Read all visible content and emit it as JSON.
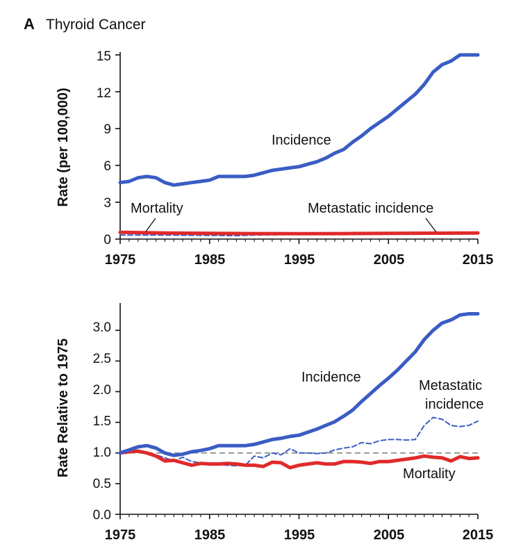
{
  "figure": {
    "panel_letter": "A",
    "panel_title": "Thyroid Cancer"
  },
  "colors": {
    "incidence": "#3a5cc4",
    "mortality": "#e02a2a",
    "metastatic": "#3a5cc4",
    "reference_line": "#8a8a8a",
    "axis": "#111111"
  },
  "chart_data": [
    {
      "type": "line",
      "title": "",
      "xlabel": "",
      "ylabel": "Rate (per 100,000)",
      "xlim": [
        1975,
        2015
      ],
      "ylim": [
        0,
        15
      ],
      "xticks": [
        1975,
        1985,
        1995,
        2005,
        2015
      ],
      "xtick_labels": [
        "1975",
        "1985",
        "1995",
        "2005",
        "2015"
      ],
      "yticks": [
        0,
        3,
        6,
        9,
        12,
        15
      ],
      "ytick_labels": [
        "0",
        "3",
        "6",
        "9",
        "12",
        "15"
      ],
      "grid": false,
      "annotations": [
        {
          "text": "Incidence",
          "target_series": "Incidence"
        },
        {
          "text": "Mortality",
          "target_series": "Mortality"
        },
        {
          "text": "Metastatic incidence",
          "target_series": "Metastatic incidence"
        }
      ],
      "series": [
        {
          "name": "Incidence",
          "style": "solid",
          "color": "#3a5cc4",
          "x": [
            1975,
            1976,
            1977,
            1978,
            1979,
            1980,
            1981,
            1982,
            1983,
            1984,
            1985,
            1986,
            1987,
            1988,
            1989,
            1990,
            1991,
            1992,
            1993,
            1994,
            1995,
            1996,
            1997,
            1998,
            1999,
            2000,
            2001,
            2002,
            2003,
            2004,
            2005,
            2006,
            2007,
            2008,
            2009,
            2010,
            2011,
            2012,
            2013,
            2014,
            2015
          ],
          "y": [
            4.6,
            4.7,
            5.0,
            5.1,
            5.0,
            4.6,
            4.4,
            4.5,
            4.6,
            4.7,
            4.8,
            5.1,
            5.1,
            5.1,
            5.1,
            5.2,
            5.4,
            5.6,
            5.7,
            5.8,
            5.9,
            6.1,
            6.3,
            6.6,
            7.0,
            7.3,
            7.9,
            8.4,
            9.0,
            9.5,
            10.0,
            10.6,
            11.2,
            11.8,
            12.6,
            13.6,
            14.2,
            14.5,
            15.0,
            15.0,
            15.0
          ]
        },
        {
          "name": "Mortality",
          "style": "solid",
          "color": "#e02a2a",
          "x": [
            1975,
            1980,
            1985,
            1990,
            1995,
            2000,
            2005,
            2010,
            2015
          ],
          "y": [
            0.55,
            0.5,
            0.47,
            0.45,
            0.44,
            0.45,
            0.47,
            0.48,
            0.5
          ]
        },
        {
          "name": "Metastatic incidence",
          "style": "dashed",
          "color": "#3a5cc4",
          "x": [
            1975,
            1980,
            1985,
            1988,
            1990,
            1995,
            2000,
            2005,
            2010,
            2015
          ],
          "y": [
            0.33,
            0.33,
            0.3,
            0.28,
            0.33,
            0.38,
            0.42,
            0.45,
            0.5,
            0.55
          ]
        }
      ]
    },
    {
      "type": "line",
      "title": "",
      "xlabel": "",
      "ylabel": "Rate Relative to 1975",
      "xlim": [
        1975,
        2015
      ],
      "ylim": [
        0,
        3.4
      ],
      "xticks": [
        1975,
        1985,
        1995,
        2005,
        2015
      ],
      "xtick_labels": [
        "1975",
        "1985",
        "1995",
        "2005",
        "2015"
      ],
      "yticks": [
        0,
        0.5,
        1.0,
        1.5,
        2.0,
        2.5,
        3.0
      ],
      "ytick_labels": [
        "0.0",
        "0.5",
        "1.0",
        "1.5",
        "2.0",
        "2.5",
        "3.0"
      ],
      "grid": false,
      "reference_line": {
        "y": 1.0,
        "style": "dashed"
      },
      "annotations": [
        {
          "text": "Incidence",
          "target_series": "Incidence"
        },
        {
          "text": "Metastatic",
          "target_series": "Metastatic incidence"
        },
        {
          "text": "incidence",
          "target_series": "Metastatic incidence"
        },
        {
          "text": "Mortality",
          "target_series": "Mortality"
        }
      ],
      "series": [
        {
          "name": "Incidence",
          "style": "solid",
          "color": "#3a5cc4",
          "x": [
            1975,
            1976,
            1977,
            1978,
            1979,
            1980,
            1981,
            1982,
            1983,
            1984,
            1985,
            1986,
            1987,
            1988,
            1989,
            1990,
            1991,
            1992,
            1993,
            1994,
            1995,
            1996,
            1997,
            1998,
            1999,
            2000,
            2001,
            2002,
            2003,
            2004,
            2005,
            2006,
            2007,
            2008,
            2009,
            2010,
            2011,
            2012,
            2013,
            2014,
            2015
          ],
          "y": [
            1.0,
            1.05,
            1.1,
            1.12,
            1.08,
            1.0,
            0.96,
            0.98,
            1.02,
            1.04,
            1.07,
            1.12,
            1.12,
            1.12,
            1.12,
            1.14,
            1.18,
            1.22,
            1.24,
            1.27,
            1.29,
            1.34,
            1.39,
            1.45,
            1.51,
            1.6,
            1.7,
            1.84,
            1.97,
            2.1,
            2.22,
            2.35,
            2.5,
            2.65,
            2.85,
            3.0,
            3.12,
            3.17,
            3.25,
            3.27,
            3.27
          ]
        },
        {
          "name": "Metastatic incidence",
          "style": "dashed",
          "color": "#3a5cc4",
          "x": [
            1975,
            1977,
            1979,
            1980,
            1981,
            1982,
            1983,
            1985,
            1987,
            1988,
            1989,
            1990,
            1991,
            1992,
            1993,
            1994,
            1995,
            1996,
            1997,
            1998,
            1999,
            2000,
            2001,
            2002,
            2003,
            2004,
            2005,
            2006,
            2007,
            2008,
            2009,
            2010,
            2011,
            2012,
            2013,
            2014,
            2015
          ],
          "y": [
            1.0,
            1.03,
            0.97,
            0.92,
            0.87,
            0.93,
            0.86,
            0.82,
            0.8,
            0.79,
            0.8,
            0.95,
            0.92,
            1.0,
            0.97,
            1.07,
            1.0,
            1.0,
            0.99,
            1.0,
            1.05,
            1.08,
            1.1,
            1.17,
            1.15,
            1.2,
            1.22,
            1.22,
            1.21,
            1.22,
            1.45,
            1.58,
            1.55,
            1.45,
            1.43,
            1.45,
            1.52
          ]
        },
        {
          "name": "Mortality",
          "style": "solid",
          "color": "#e02a2a",
          "x": [
            1975,
            1976,
            1977,
            1978,
            1979,
            1980,
            1981,
            1982,
            1983,
            1984,
            1985,
            1986,
            1987,
            1988,
            1989,
            1990,
            1991,
            1992,
            1993,
            1994,
            1995,
            1996,
            1997,
            1998,
            1999,
            2000,
            2001,
            2002,
            2003,
            2004,
            2005,
            2006,
            2007,
            2008,
            2009,
            2010,
            2011,
            2012,
            2013,
            2014,
            2015
          ],
          "y": [
            1.0,
            1.02,
            1.03,
            1.0,
            0.95,
            0.87,
            0.88,
            0.84,
            0.8,
            0.83,
            0.82,
            0.82,
            0.83,
            0.82,
            0.8,
            0.8,
            0.78,
            0.85,
            0.84,
            0.76,
            0.8,
            0.82,
            0.84,
            0.82,
            0.82,
            0.86,
            0.86,
            0.85,
            0.83,
            0.86,
            0.86,
            0.88,
            0.9,
            0.92,
            0.95,
            0.93,
            0.92,
            0.87,
            0.94,
            0.91,
            0.92
          ]
        }
      ]
    }
  ]
}
